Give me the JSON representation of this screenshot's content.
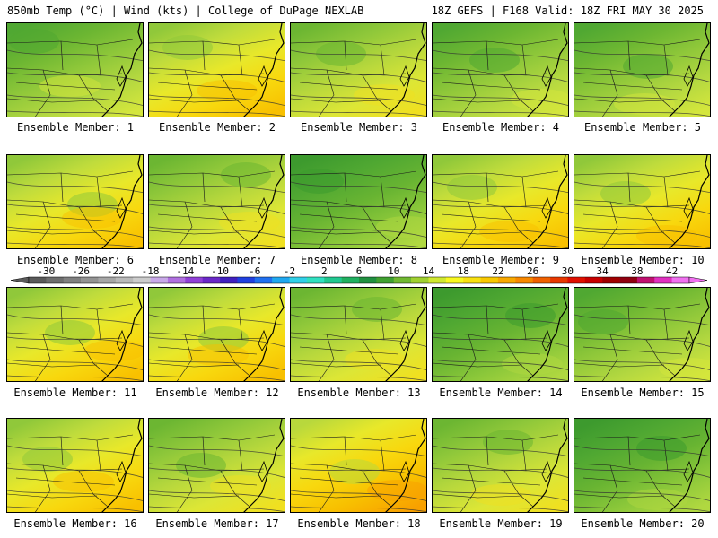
{
  "header": {
    "left": "850mb Temp (°C) | Wind (kts) | College of DuPage NEXLAB",
    "right": "18Z GEFS | F168 Valid: 18Z FRI MAY 30 2025"
  },
  "panels": [
    {
      "label": "Ensemble Member: 1",
      "tone": "cool"
    },
    {
      "label": "Ensemble Member: 2",
      "tone": "warm"
    },
    {
      "label": "Ensemble Member: 3",
      "tone": "mid"
    },
    {
      "label": "Ensemble Member: 4",
      "tone": "cool"
    },
    {
      "label": "Ensemble Member: 5",
      "tone": "cool"
    },
    {
      "label": "Ensemble Member: 6",
      "tone": "warm"
    },
    {
      "label": "Ensemble Member: 7",
      "tone": "mid"
    },
    {
      "label": "Ensemble Member: 8",
      "tone": "cold"
    },
    {
      "label": "Ensemble Member: 9",
      "tone": "warm"
    },
    {
      "label": "Ensemble Member: 10",
      "tone": "warm"
    },
    {
      "label": "Ensemble Member: 11",
      "tone": "warm"
    },
    {
      "label": "Ensemble Member: 12",
      "tone": "warm"
    },
    {
      "label": "Ensemble Member: 13",
      "tone": "mid"
    },
    {
      "label": "Ensemble Member: 14",
      "tone": "cold"
    },
    {
      "label": "Ensemble Member: 15",
      "tone": "cool"
    },
    {
      "label": "Ensemble Member: 16",
      "tone": "warm"
    },
    {
      "label": "Ensemble Member: 17",
      "tone": "mid"
    },
    {
      "label": "Ensemble Member: 18",
      "tone": "hot"
    },
    {
      "label": "Ensemble Member: 19",
      "tone": "mid"
    },
    {
      "label": "Ensemble Member: 20",
      "tone": "cold"
    }
  ],
  "colorbar": {
    "min": -32,
    "max": 44,
    "step": 2,
    "tick_labels": [
      "-30",
      "-26",
      "-22",
      "-18",
      "-14",
      "-10",
      "-6",
      "-2",
      "2",
      "6",
      "10",
      "14",
      "18",
      "22",
      "26",
      "30",
      "34",
      "38",
      "42"
    ],
    "colors": [
      "#5a5a5a",
      "#6e6e6e",
      "#808080",
      "#939393",
      "#a6a6a6",
      "#b9b9b9",
      "#cccccc",
      "#c8a8e8",
      "#b070e0",
      "#9040d8",
      "#6a28c8",
      "#4020c0",
      "#2040e0",
      "#2070f0",
      "#20a8f0",
      "#30d0e8",
      "#30e0c0",
      "#20c890",
      "#20b060",
      "#209040",
      "#40a030",
      "#70b830",
      "#a0d030",
      "#d0e830",
      "#f8f820",
      "#f8e010",
      "#f8c800",
      "#f8a800",
      "#f88800",
      "#f06000",
      "#e83800",
      "#e01000",
      "#c80000",
      "#a00000",
      "#900010",
      "#c01070",
      "#e030c0",
      "#f070f0"
    ]
  }
}
